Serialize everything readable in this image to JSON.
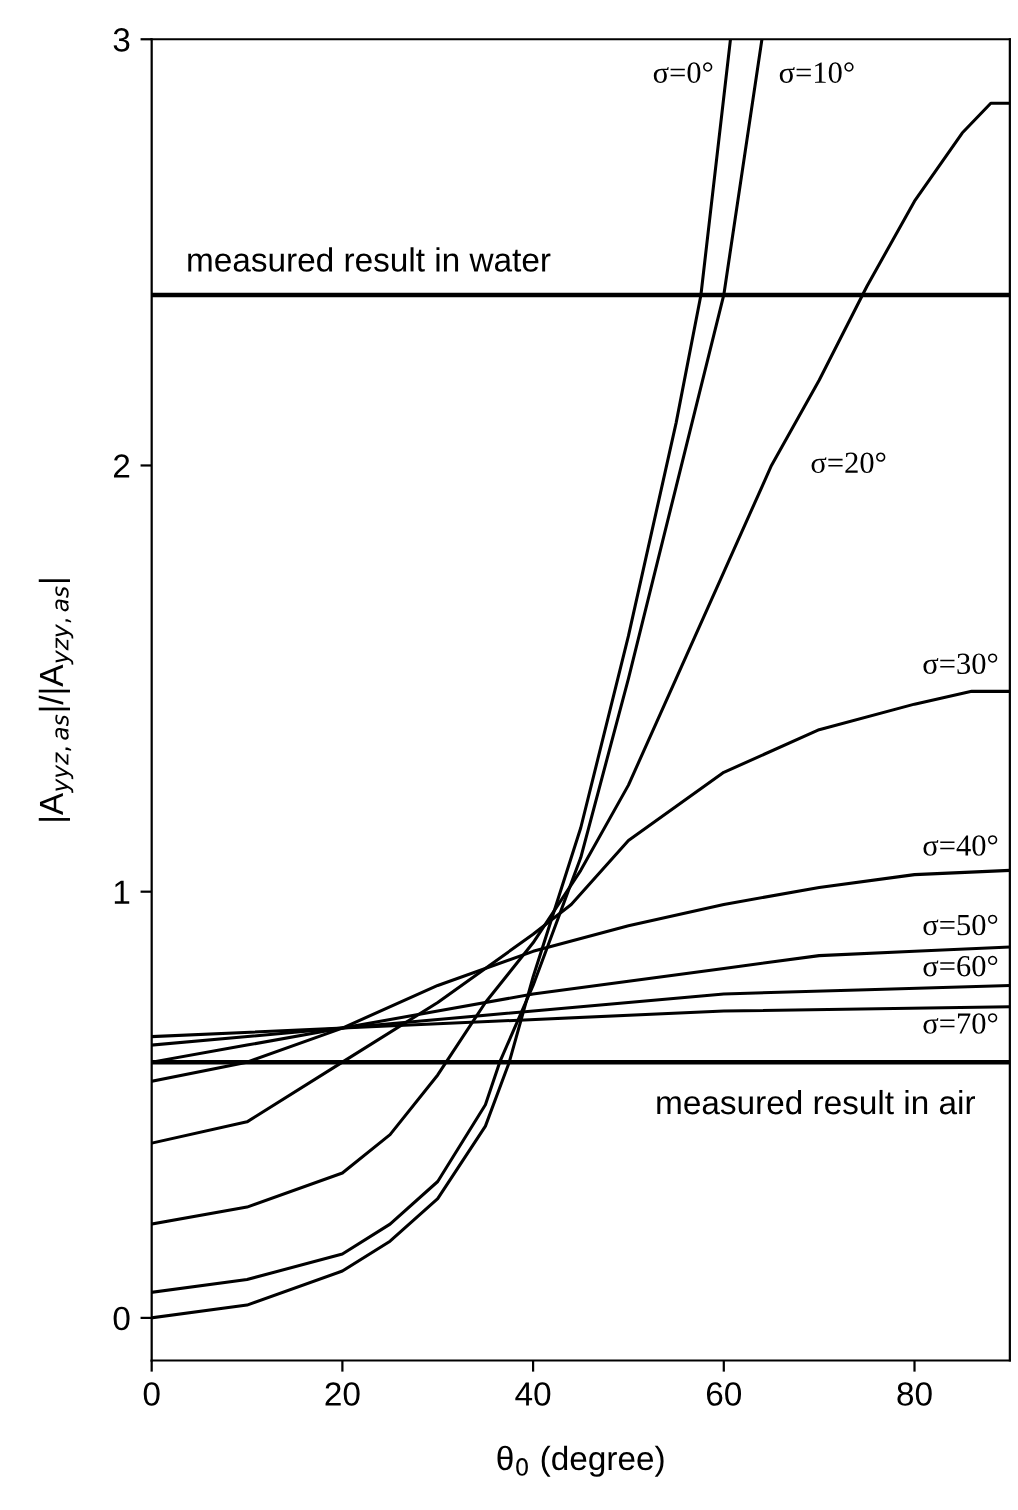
{
  "chart_data": {
    "type": "line",
    "xlabel": "θ$_{0}$ (degree)",
    "ylabel": "|A$_{yyz,as}$|/|A$_{yzy,as}$|",
    "xlim": [
      0,
      90
    ],
    "ylim": [
      -0.1,
      3
    ],
    "xticks": [
      0,
      20,
      40,
      60,
      80
    ],
    "yticks": [
      0,
      1,
      2,
      3
    ],
    "grid": false,
    "legend": false,
    "marker": "none",
    "line_style": "solid",
    "series": [
      {
        "name": "σ=0°",
        "color": "#000000",
        "x": [
          0,
          10,
          20,
          25,
          30,
          35,
          37.5,
          40,
          45,
          50,
          55,
          57.6,
          60.7
        ],
        "values": [
          0,
          0.03,
          0.11,
          0.18,
          0.28,
          0.45,
          0.6,
          0.8,
          1.15,
          1.6,
          2.1,
          2.4,
          3.0
        ]
      },
      {
        "name": "σ=10°",
        "color": "#000000",
        "x": [
          0,
          10,
          20,
          25,
          30,
          35,
          36.5,
          40,
          45,
          50,
          55,
          60,
          64
        ],
        "values": [
          0.06,
          0.09,
          0.15,
          0.22,
          0.32,
          0.5,
          0.6,
          0.78,
          1.08,
          1.5,
          1.95,
          2.4,
          3.0
        ]
      },
      {
        "name": "σ=20°",
        "color": "#000000",
        "x": [
          0,
          10,
          20,
          25,
          30,
          35,
          40,
          45,
          50,
          55,
          60,
          65,
          70,
          75,
          80,
          85,
          88,
          90
        ],
        "values": [
          0.22,
          0.26,
          0.34,
          0.43,
          0.57,
          0.74,
          0.88,
          1.05,
          1.25,
          1.5,
          1.75,
          2.0,
          2.2,
          2.42,
          2.62,
          2.78,
          2.85,
          2.85
        ]
      },
      {
        "name": "σ=30°",
        "color": "#000000",
        "x": [
          0,
          10,
          20,
          30,
          40,
          44,
          50,
          60,
          70,
          80,
          86,
          90
        ],
        "values": [
          0.41,
          0.46,
          0.6,
          0.74,
          0.9,
          0.97,
          1.12,
          1.28,
          1.38,
          1.44,
          1.47,
          1.47
        ]
      },
      {
        "name": "σ=40°",
        "color": "#000000",
        "x": [
          0,
          10,
          20,
          30,
          40,
          50,
          60,
          70,
          80,
          90
        ],
        "values": [
          0.555,
          0.6,
          0.68,
          0.78,
          0.86,
          0.92,
          0.97,
          1.01,
          1.04,
          1.05
        ]
      },
      {
        "name": "σ=50°",
        "color": "#000000",
        "x": [
          0,
          10,
          20,
          30,
          40,
          50,
          60,
          70,
          80,
          90
        ],
        "values": [
          0.6,
          0.64,
          0.68,
          0.72,
          0.76,
          0.79,
          0.82,
          0.85,
          0.86,
          0.87
        ]
      },
      {
        "name": "σ=60°",
        "color": "#000000",
        "x": [
          0,
          15,
          30,
          45,
          60,
          75,
          90
        ],
        "values": [
          0.64,
          0.67,
          0.7,
          0.73,
          0.76,
          0.77,
          0.78
        ]
      },
      {
        "name": "σ=70°",
        "color": "#000000",
        "x": [
          0,
          30,
          60,
          90
        ],
        "values": [
          0.66,
          0.69,
          0.72,
          0.73
        ]
      }
    ],
    "ref_lines": [
      {
        "axis": "y",
        "value": 2.4,
        "label": "measured result in water",
        "color": "#000000"
      },
      {
        "axis": "y",
        "value": 0.6,
        "label": "measured result in air",
        "color": "#000000"
      }
    ]
  }
}
